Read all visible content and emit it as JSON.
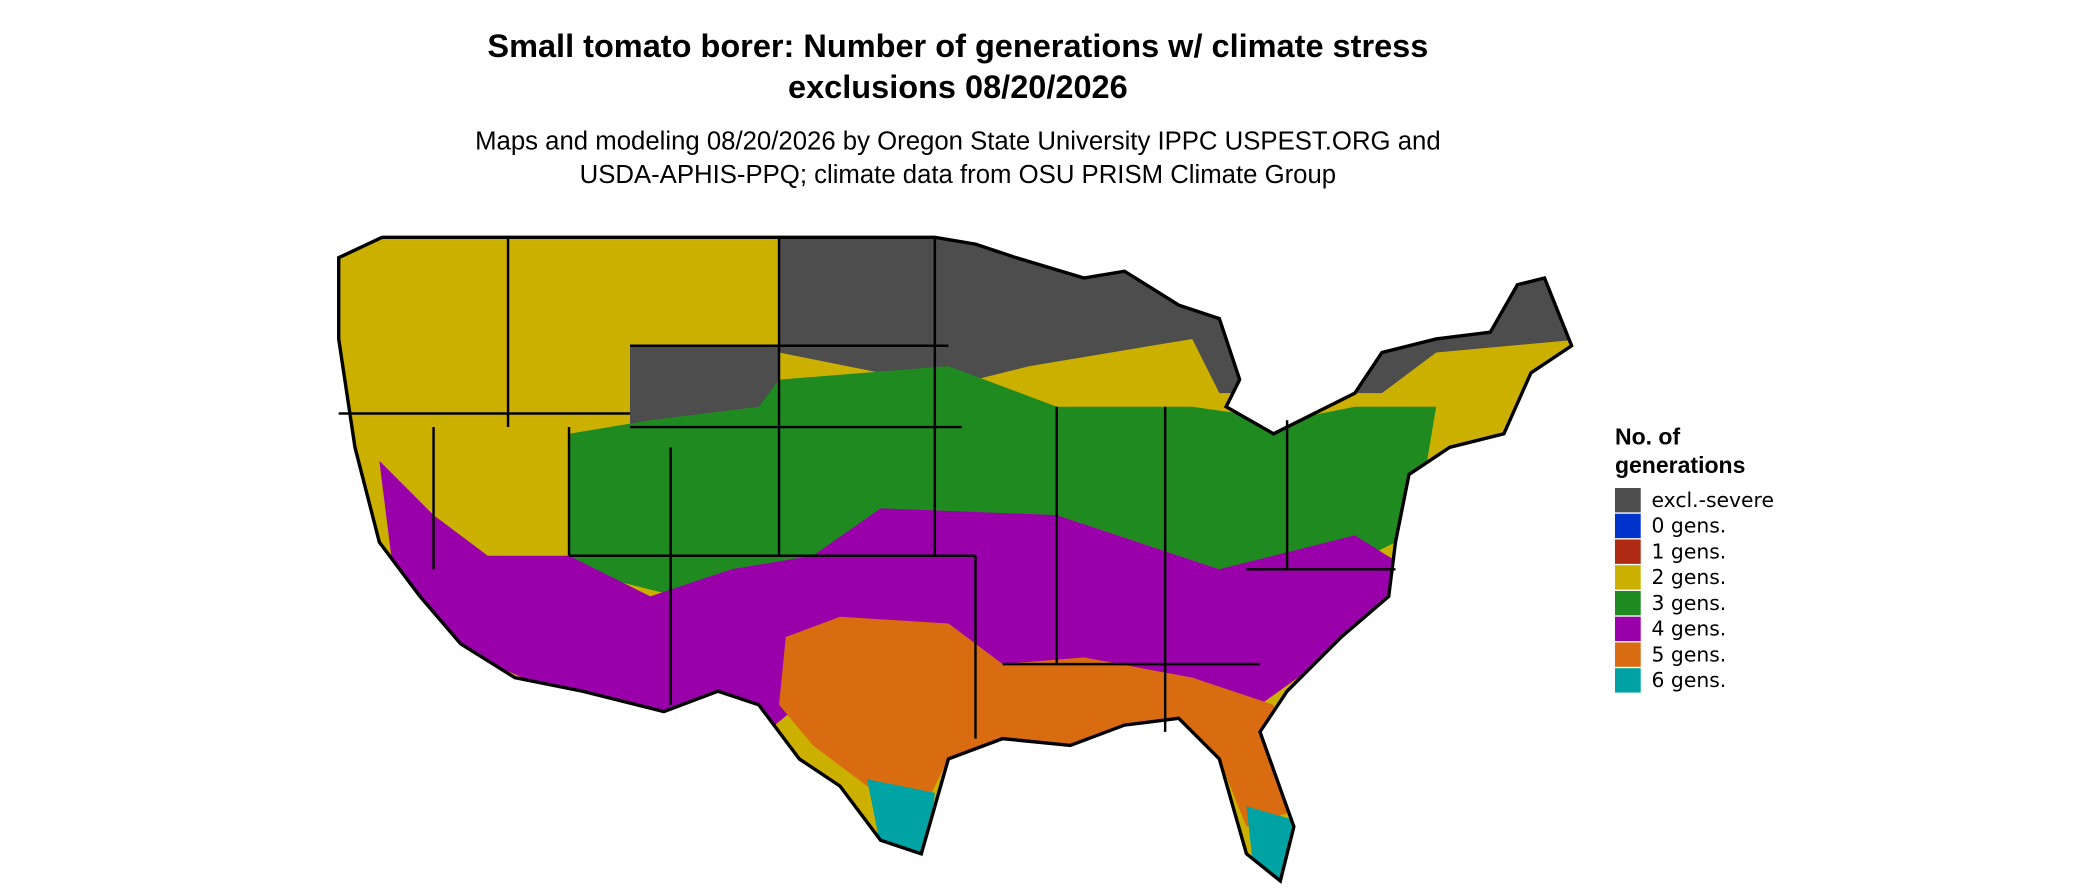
{
  "title": [
    "Small tomato borer: Number of generations w/ climate stress",
    "exclusions 08/20/2026"
  ],
  "subtitle": [
    "Maps and modeling 08/20/2026 by Oregon State University IPPC USPEST.ORG and",
    "USDA-APHIS-PPQ; climate data from OSU PRISM Climate Group"
  ],
  "legend": {
    "title": [
      "No. of",
      "generations"
    ],
    "items": [
      {
        "label": "excl.-severe",
        "color": "#4d4d4d"
      },
      {
        "label": "0 gens.",
        "color": "#0033cc"
      },
      {
        "label": "1 gens.",
        "color": "#b02a14"
      },
      {
        "label": "2 gens.",
        "color": "#ccb000"
      },
      {
        "label": "3 gens.",
        "color": "#1f8a1f"
      },
      {
        "label": "4 gens.",
        "color": "#9a00aa"
      },
      {
        "label": "5 gens.",
        "color": "#d96c10"
      },
      {
        "label": "6 gens.",
        "color": "#00a3a3"
      }
    ]
  }
}
